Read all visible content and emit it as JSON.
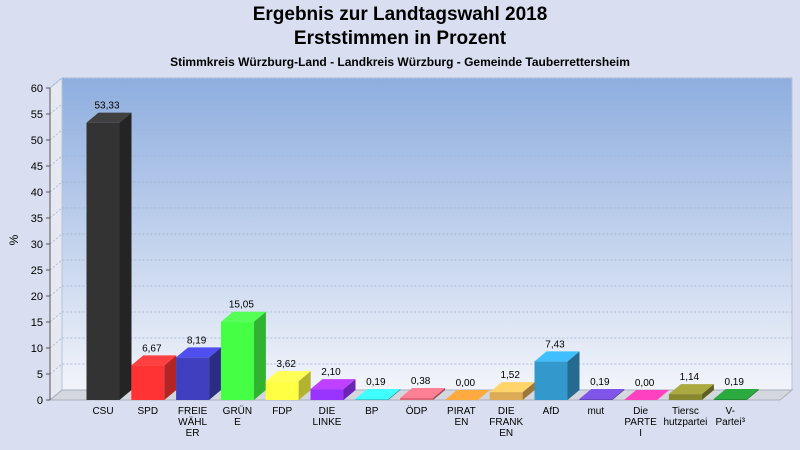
{
  "title": "Ergebnis zur Landtagswahl 2018",
  "subtitle": "Erststimmen in Prozent",
  "subsubtitle": "Stimmkreis Würzburg-Land - Landkreis Würzburg - Gemeinde Tauberrettersheim",
  "chart_data": {
    "type": "bar",
    "ylabel": "%",
    "ylim": [
      0,
      60
    ],
    "yticks": [
      "0",
      "5",
      "10",
      "15",
      "20",
      "25",
      "30",
      "35",
      "40",
      "45",
      "50",
      "55",
      "60"
    ],
    "grid": true,
    "bars": [
      {
        "label": [
          "CSU"
        ],
        "value": 53.33,
        "value_label": "53,33",
        "color": "#333333"
      },
      {
        "label": [
          "SPD"
        ],
        "value": 6.67,
        "value_label": "6,67",
        "color": "#ff3333"
      },
      {
        "label": [
          "FREIE",
          "WÄHL",
          "ER"
        ],
        "value": 8.19,
        "value_label": "8,19",
        "color": "#3f3fbf"
      },
      {
        "label": [
          "GRÜN",
          "E"
        ],
        "value": 15.05,
        "value_label": "15,05",
        "color": "#44ff44"
      },
      {
        "label": [
          "FDP"
        ],
        "value": 3.62,
        "value_label": "3,62",
        "color": "#ffff44"
      },
      {
        "label": [
          "DIE",
          "LINKE"
        ],
        "value": 2.1,
        "value_label": "2,10",
        "color": "#9933ff"
      },
      {
        "label": [
          "BP"
        ],
        "value": 0.19,
        "value_label": "0,19",
        "color": "#33cccc"
      },
      {
        "label": [
          "ÖDP"
        ],
        "value": 0.38,
        "value_label": "0,38",
        "color": "#dd6677"
      },
      {
        "label": [
          "PIRAT",
          "EN"
        ],
        "value": 0.0,
        "value_label": "0,00",
        "color": "#ff8833"
      },
      {
        "label": [
          "DIE",
          "FRANK",
          "EN"
        ],
        "value": 1.52,
        "value_label": "1,52",
        "color": "#ddaa55"
      },
      {
        "label": [
          "AfD"
        ],
        "value": 7.43,
        "value_label": "7,43",
        "color": "#3399cc"
      },
      {
        "label": [
          "mut"
        ],
        "value": 0.19,
        "value_label": "0,19",
        "color": "#6644bb"
      },
      {
        "label": [
          "Die",
          "PARTE",
          "I"
        ],
        "value": 0.0,
        "value_label": "0,00",
        "color": "#ff3399"
      },
      {
        "label": [
          "Tiersc",
          "hutzpartei"
        ],
        "value": 1.14,
        "value_label": "1,14",
        "color": "#888833"
      },
      {
        "label": [
          "V-",
          "Partei³"
        ],
        "value": 0.19,
        "value_label": "0,19",
        "color": "#228833"
      }
    ]
  }
}
